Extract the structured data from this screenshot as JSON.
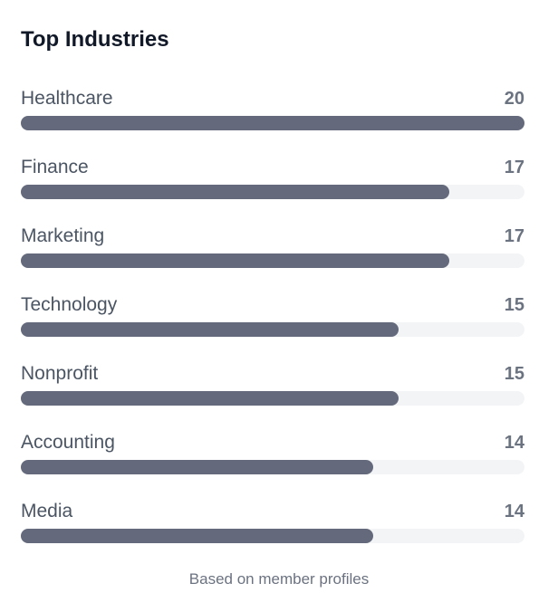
{
  "title": "Top Industries",
  "footer": "Based on member profiles",
  "colors": {
    "fill": "#646a7b",
    "track": "#f3f4f6"
  },
  "chart_data": {
    "type": "bar",
    "orientation": "horizontal",
    "title": "Top Industries",
    "categories": [
      "Healthcare",
      "Finance",
      "Marketing",
      "Technology",
      "Nonprofit",
      "Accounting",
      "Media"
    ],
    "values": [
      20,
      17,
      17,
      15,
      15,
      14,
      14
    ],
    "xlim": [
      0,
      20
    ]
  }
}
